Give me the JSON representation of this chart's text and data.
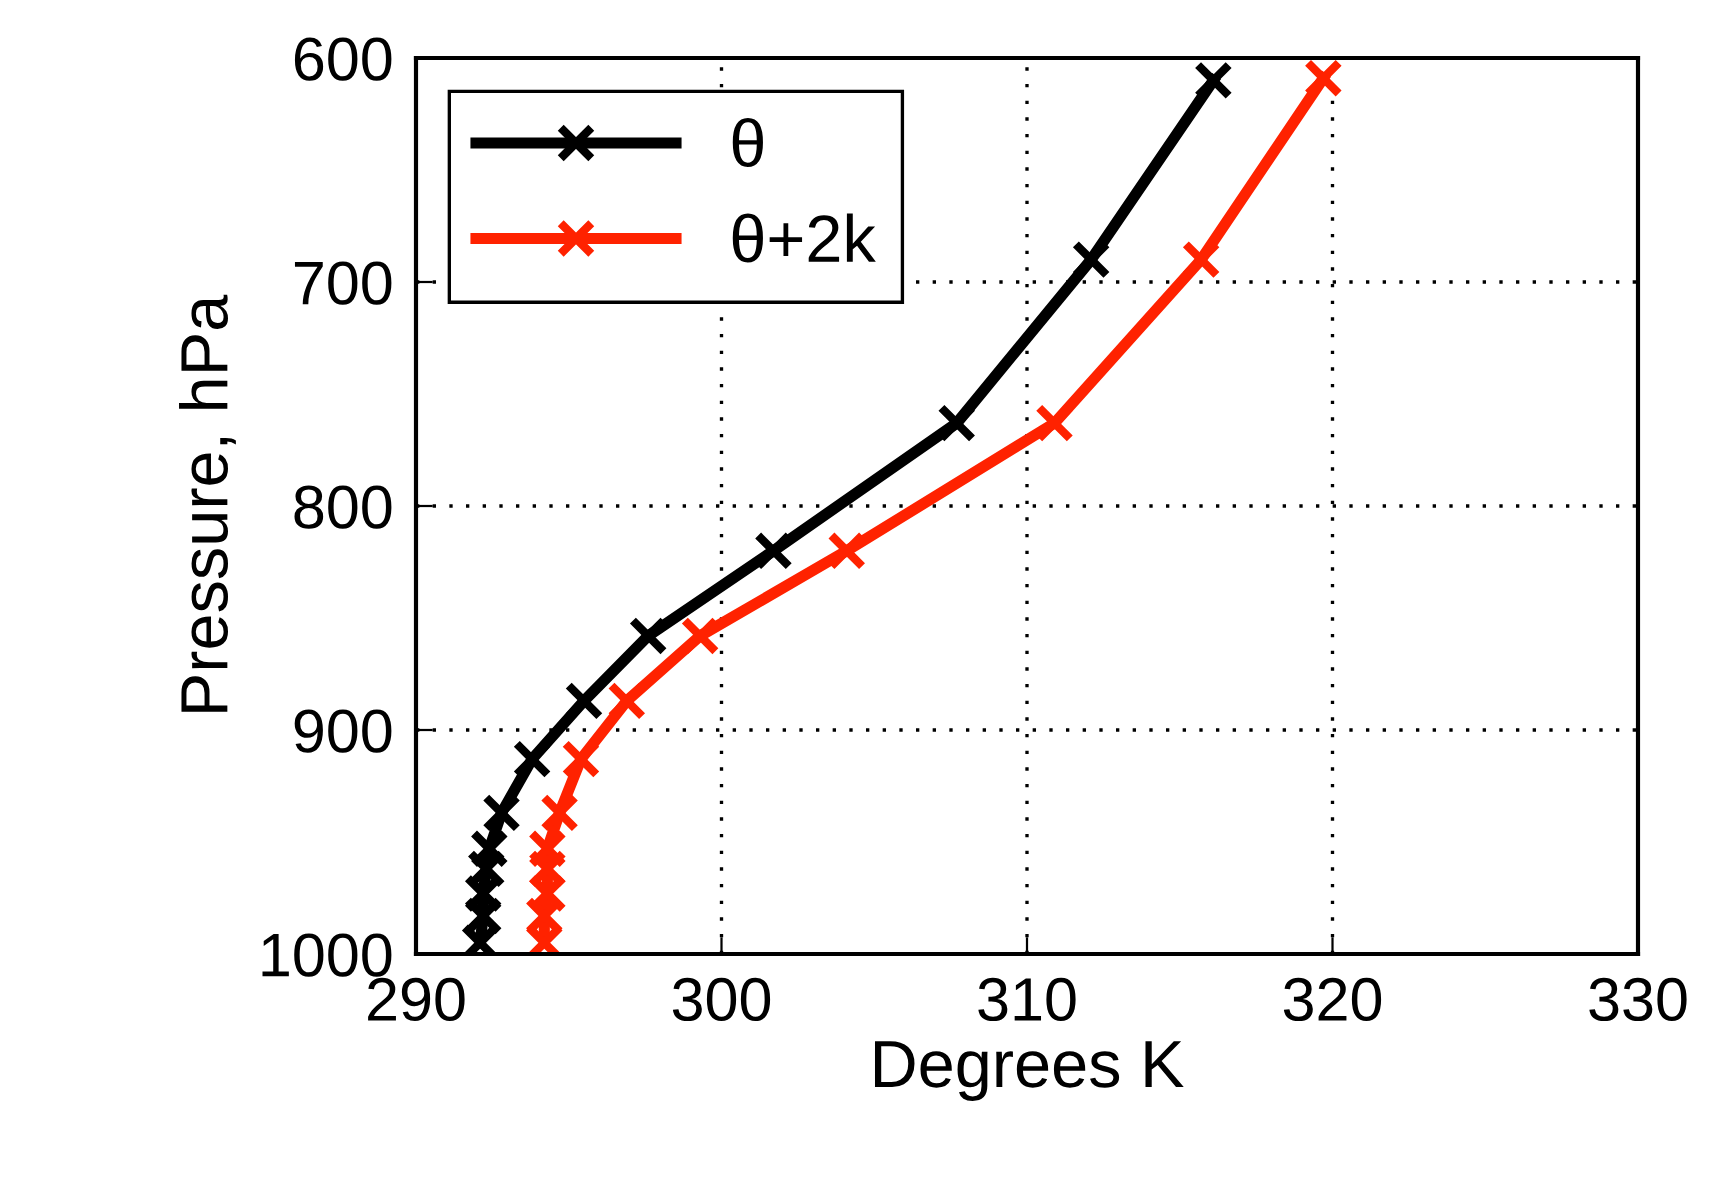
{
  "chart_data": {
    "type": "line",
    "xlabel": "Degrees K",
    "ylabel": "Pressure, hPa",
    "series": [
      {
        "name": "θ",
        "color": "#000000",
        "x": [
          292.1,
          292.2,
          292.2,
          292.3,
          292.4,
          292.8,
          293.8,
          295.5,
          297.6,
          301.7,
          307.7,
          312.1,
          316.1
        ],
        "values": [
          995,
          983,
          973,
          962,
          953,
          937,
          913,
          887,
          858,
          820,
          763,
          690,
          610
        ]
      },
      {
        "name": "θ+2k",
        "color": "#ff2200",
        "x": [
          294.2,
          294.2,
          294.3,
          294.3,
          294.3,
          294.7,
          295.4,
          296.9,
          299.3,
          304.1,
          310.9,
          315.7,
          319.7
        ],
        "values": [
          995,
          983,
          973,
          962,
          953,
          937,
          913,
          887,
          858,
          820,
          763,
          690,
          609
        ]
      }
    ],
    "xlim": [
      290,
      330
    ],
    "xticks": [
      290,
      300,
      310,
      320,
      330
    ],
    "ylim": [
      1000,
      600
    ],
    "yticks": [
      600,
      700,
      800,
      900,
      1000
    ],
    "grid": true,
    "legend": "top left",
    "marker": "cross",
    "line_style": "solid"
  }
}
